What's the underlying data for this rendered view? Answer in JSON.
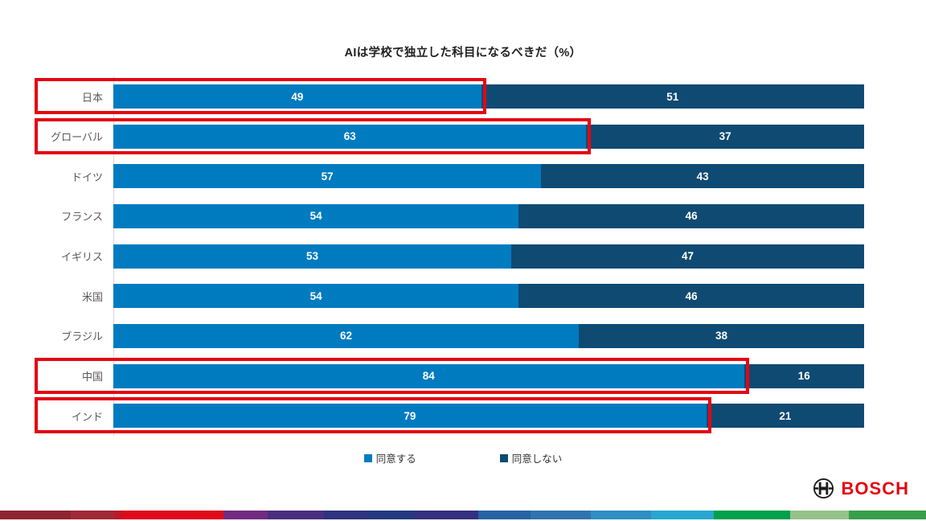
{
  "chart_data": {
    "type": "bar",
    "orientation": "horizontal",
    "stacked": true,
    "title": "AIは学校で独立した科目になるべきだ（%）",
    "categories": [
      "日本",
      "グローバル",
      "ドイツ",
      "フランス",
      "イギリス",
      "米国",
      "ブラジル",
      "中国",
      "インド"
    ],
    "series": [
      {
        "name": "同意する",
        "color": "#007BC0",
        "values": [
          49,
          63,
          57,
          54,
          53,
          54,
          62,
          84,
          79
        ]
      },
      {
        "name": "同意しない",
        "color": "#0F4A73",
        "values": [
          51,
          37,
          43,
          46,
          47,
          46,
          38,
          16,
          21
        ]
      }
    ],
    "xlim": [
      0,
      100
    ],
    "value_labels": "centered-white-bold",
    "legend_position": "bottom",
    "grid": false,
    "highlighted_rows": [
      "日本",
      "グローバル",
      "中国",
      "インド"
    ],
    "highlight_color": "#E30613"
  },
  "branding": {
    "logo_text": "BOSCH",
    "logo_color": "#E30613",
    "symbol_icon": "bosch-armature-icon",
    "supergraphic": [
      {
        "color": "#8E2433",
        "width": 88
      },
      {
        "color": "#A02A36",
        "width": 55
      },
      {
        "color": "#C21622",
        "width": 10
      },
      {
        "color": "#DF0A18",
        "width": 125
      },
      {
        "color": "#722B80",
        "width": 55
      },
      {
        "color": "#4A2E80",
        "width": 70
      },
      {
        "color": "#2F3380",
        "width": 55
      },
      {
        "color": "#253980",
        "width": 57
      },
      {
        "color": "#333180",
        "width": 80
      },
      {
        "color": "#2563A3",
        "width": 65
      },
      {
        "color": "#2F74AE",
        "width": 75
      },
      {
        "color": "#2F8EC4",
        "width": 75
      },
      {
        "color": "#27A7CF",
        "width": 78
      },
      {
        "color": "#00A04C",
        "width": 95
      },
      {
        "color": "#95C289",
        "width": 73
      },
      {
        "color": "#379F49",
        "width": 96
      }
    ]
  }
}
